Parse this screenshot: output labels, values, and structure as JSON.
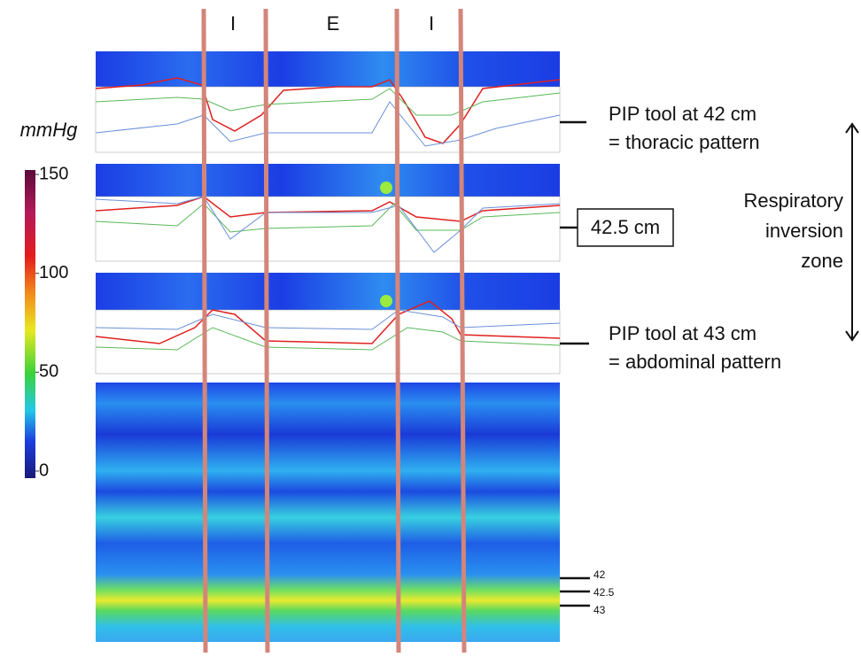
{
  "phases": [
    "I",
    "E",
    "I"
  ],
  "colorbar": {
    "unit": "mmHg",
    "range": [
      0,
      150
    ],
    "ticks": [
      0,
      50,
      100,
      150
    ]
  },
  "annotations": {
    "top": [
      "PIP tool at 42 cm",
      "= thoracic pattern"
    ],
    "middle": "42.5 cm",
    "bottom": [
      "PIP tool at 43 cm",
      "= abdominal pattern"
    ],
    "zone": [
      "Respiratory",
      "inversion",
      "zone"
    ]
  },
  "positions": [
    "42",
    "42.5",
    "43"
  ]
}
